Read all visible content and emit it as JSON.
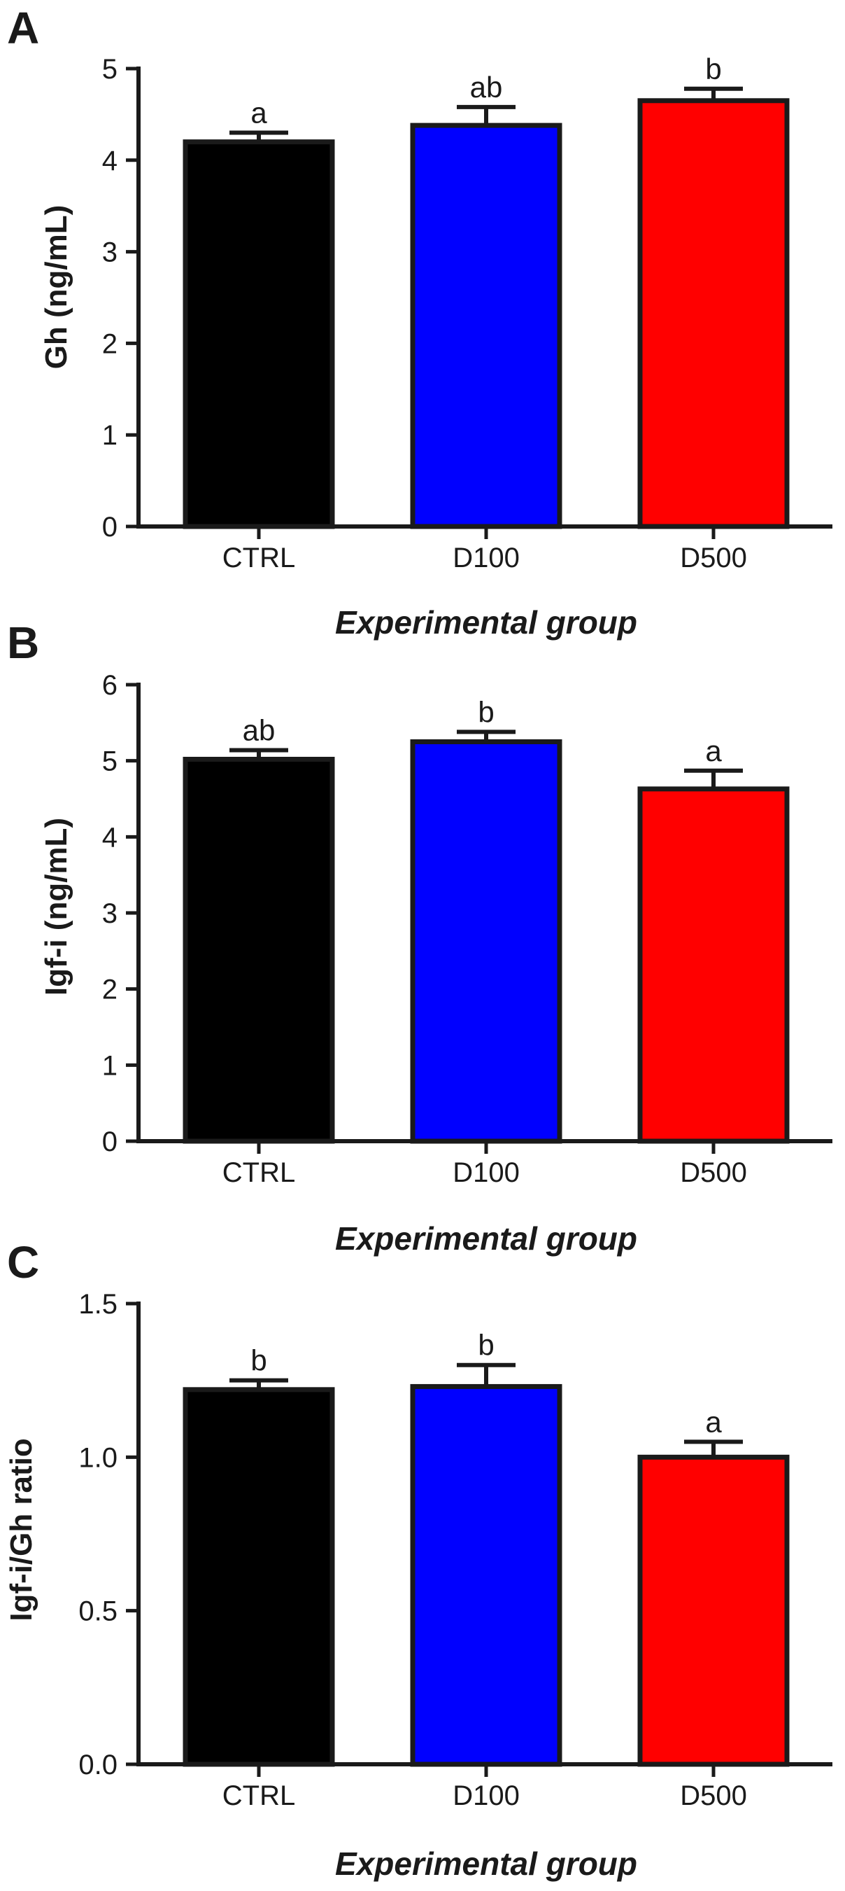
{
  "chart_data": [
    {
      "panel": "A",
      "type": "bar",
      "categories": [
        "CTRL",
        "D100",
        "D500"
      ],
      "values": [
        4.2,
        4.38,
        4.65
      ],
      "errors": [
        0.1,
        0.2,
        0.13
      ],
      "significance": [
        "a",
        "ab",
        "b"
      ],
      "colors": [
        "#000000",
        "#0000ff",
        "#ff0000"
      ],
      "ylabel": "Gh (ng/mL)",
      "xlabel": "Experimental group",
      "ylim": [
        0,
        5
      ],
      "yticks": [
        0,
        1,
        2,
        3,
        4,
        5
      ],
      "ytick_labels": [
        "0",
        "1",
        "2",
        "3",
        "4",
        "5"
      ]
    },
    {
      "panel": "B",
      "type": "bar",
      "categories": [
        "CTRL",
        "D100",
        "D500"
      ],
      "values": [
        5.02,
        5.25,
        4.63
      ],
      "errors": [
        0.12,
        0.13,
        0.24
      ],
      "significance": [
        "ab",
        "b",
        "a"
      ],
      "colors": [
        "#000000",
        "#0000ff",
        "#ff0000"
      ],
      "ylabel": "Igf-i (ng/mL)",
      "xlabel": "Experimental group",
      "ylim": [
        0,
        6
      ],
      "yticks": [
        0,
        1,
        2,
        3,
        4,
        5,
        6
      ],
      "ytick_labels": [
        "0",
        "1",
        "2",
        "3",
        "4",
        "5",
        "6"
      ]
    },
    {
      "panel": "C",
      "type": "bar",
      "categories": [
        "CTRL",
        "D100",
        "D500"
      ],
      "values": [
        1.22,
        1.23,
        1.0
      ],
      "errors": [
        0.03,
        0.07,
        0.05
      ],
      "significance": [
        "b",
        "b",
        "a"
      ],
      "colors": [
        "#000000",
        "#0000ff",
        "#ff0000"
      ],
      "ylabel": "Igf-i/Gh ratio",
      "xlabel": "Experimental group",
      "ylim": [
        0,
        1.5
      ],
      "yticks": [
        0,
        0.5,
        1.0,
        1.5
      ],
      "ytick_labels": [
        "0.0",
        "0.5",
        "1.0",
        "1.5"
      ]
    }
  ]
}
